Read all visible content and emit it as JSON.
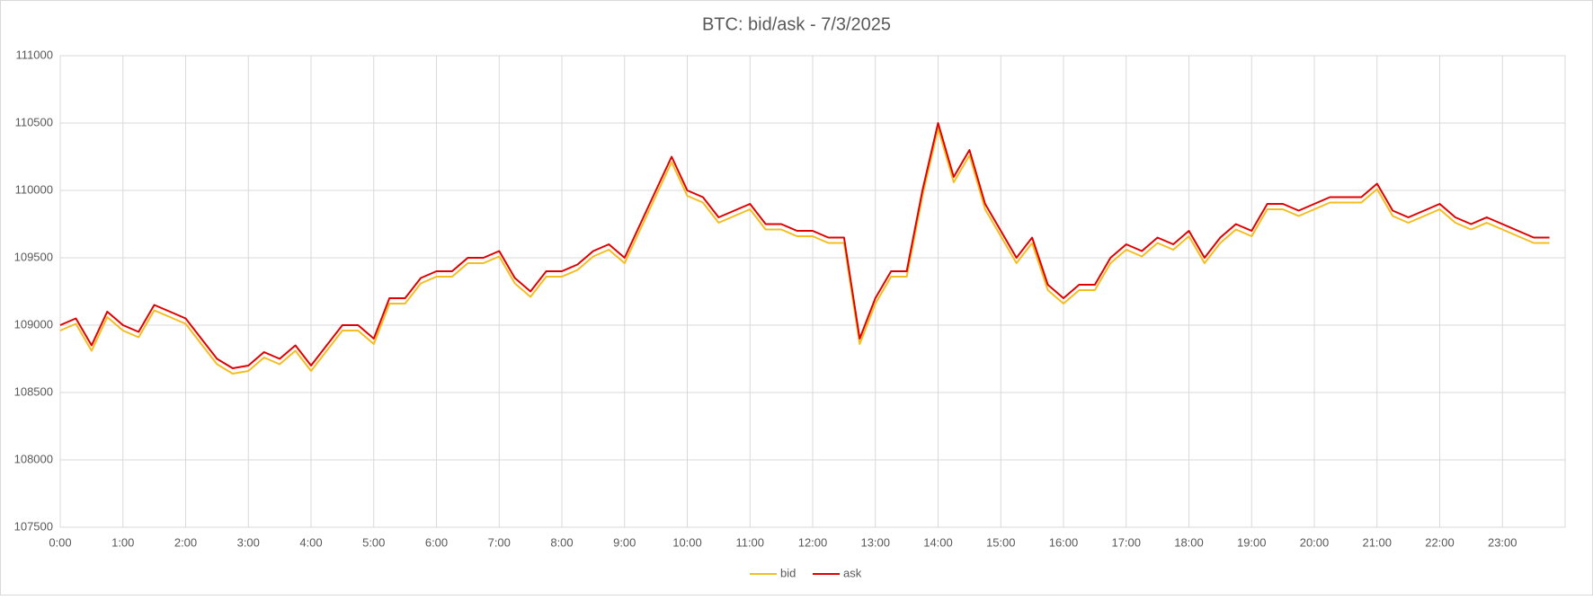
{
  "chart_data": {
    "type": "line",
    "title": "BTC: bid/ask - 7/3/2025",
    "x": [
      0,
      0.25,
      0.5,
      0.75,
      1,
      1.25,
      1.5,
      1.75,
      2,
      2.25,
      2.5,
      2.75,
      3,
      3.25,
      3.5,
      3.75,
      4,
      4.25,
      4.5,
      4.75,
      5,
      5.25,
      5.5,
      5.75,
      6,
      6.25,
      6.5,
      6.75,
      7,
      7.25,
      7.5,
      7.75,
      8,
      8.25,
      8.5,
      8.75,
      9,
      9.25,
      9.5,
      9.75,
      10,
      10.25,
      10.5,
      10.75,
      11,
      11.25,
      11.5,
      11.75,
      12,
      12.25,
      12.5,
      12.75,
      13,
      13.25,
      13.5,
      13.75,
      14,
      14.25,
      14.5,
      14.75,
      15,
      15.25,
      15.5,
      15.75,
      16,
      16.25,
      16.5,
      16.75,
      17,
      17.25,
      17.5,
      17.75,
      18,
      18.25,
      18.5,
      18.75,
      19,
      19.25,
      19.5,
      19.75,
      20,
      20.25,
      20.5,
      20.75,
      21,
      21.25,
      21.5,
      21.75,
      22,
      22.25,
      22.5,
      22.75,
      23,
      23.25,
      23.5,
      23.75
    ],
    "series": [
      {
        "name": "bid",
        "color": "#f5bd1f",
        "values": [
          108960,
          109010,
          108810,
          109060,
          108960,
          108910,
          109110,
          109060,
          109010,
          108860,
          108710,
          108640,
          108660,
          108760,
          108710,
          108810,
          108660,
          108810,
          108960,
          108960,
          108860,
          109160,
          109160,
          109310,
          109360,
          109360,
          109460,
          109460,
          109510,
          109310,
          109210,
          109360,
          109360,
          109410,
          109510,
          109560,
          109460,
          109710,
          109960,
          110210,
          109960,
          109910,
          109760,
          109810,
          109860,
          109710,
          109710,
          109660,
          109660,
          109610,
          109610,
          108860,
          109160,
          109360,
          109360,
          109960,
          110460,
          110060,
          110260,
          109860,
          109660,
          109460,
          109610,
          109260,
          109160,
          109260,
          109260,
          109460,
          109560,
          109510,
          109610,
          109560,
          109660,
          109460,
          109610,
          109710,
          109660,
          109860,
          109860,
          109810,
          109860,
          109910,
          109910,
          109910,
          110010,
          109810,
          109760,
          109810,
          109860,
          109760,
          109710,
          109760,
          109710,
          109660,
          109610,
          109610
        ]
      },
      {
        "name": "ask",
        "color": "#e00000",
        "values": [
          109000,
          109050,
          108850,
          109100,
          109000,
          108950,
          109150,
          109100,
          109050,
          108900,
          108750,
          108680,
          108700,
          108800,
          108750,
          108850,
          108700,
          108850,
          109000,
          109000,
          108900,
          109200,
          109200,
          109350,
          109400,
          109400,
          109500,
          109500,
          109550,
          109350,
          109250,
          109400,
          109400,
          109450,
          109550,
          109600,
          109500,
          109750,
          110000,
          110250,
          110000,
          109950,
          109800,
          109850,
          109900,
          109750,
          109750,
          109700,
          109700,
          109650,
          109650,
          108900,
          109200,
          109400,
          109400,
          110000,
          110500,
          110100,
          110300,
          109900,
          109700,
          109500,
          109650,
          109300,
          109200,
          109300,
          109300,
          109500,
          109600,
          109550,
          109650,
          109600,
          109700,
          109500,
          109650,
          109750,
          109700,
          109900,
          109900,
          109850,
          109900,
          109950,
          109950,
          109950,
          110050,
          109850,
          109800,
          109850,
          109900,
          109800,
          109750,
          109800,
          109750,
          109700,
          109650,
          109650
        ]
      }
    ],
    "xlim": [
      0,
      24
    ],
    "xticks": [
      {
        "value": 0,
        "label": "0:00"
      },
      {
        "value": 1,
        "label": "1:00"
      },
      {
        "value": 2,
        "label": "2:00"
      },
      {
        "value": 3,
        "label": "3:00"
      },
      {
        "value": 4,
        "label": "4:00"
      },
      {
        "value": 5,
        "label": "5:00"
      },
      {
        "value": 6,
        "label": "6:00"
      },
      {
        "value": 7,
        "label": "7:00"
      },
      {
        "value": 8,
        "label": "8:00"
      },
      {
        "value": 9,
        "label": "9:00"
      },
      {
        "value": 10,
        "label": "10:00"
      },
      {
        "value": 11,
        "label": "11:00"
      },
      {
        "value": 12,
        "label": "12:00"
      },
      {
        "value": 13,
        "label": "13:00"
      },
      {
        "value": 14,
        "label": "14:00"
      },
      {
        "value": 15,
        "label": "15:00"
      },
      {
        "value": 16,
        "label": "16:00"
      },
      {
        "value": 17,
        "label": "17:00"
      },
      {
        "value": 18,
        "label": "18:00"
      },
      {
        "value": 19,
        "label": "19:00"
      },
      {
        "value": 20,
        "label": "20:00"
      },
      {
        "value": 21,
        "label": "21:00"
      },
      {
        "value": 22,
        "label": "22:00"
      },
      {
        "value": 23,
        "label": "23:00"
      }
    ],
    "ylim": [
      107500,
      111000
    ],
    "yticks": [
      107500,
      108000,
      108500,
      109000,
      109500,
      110000,
      110500,
      111000
    ],
    "grid": true,
    "legend": "bottom"
  }
}
